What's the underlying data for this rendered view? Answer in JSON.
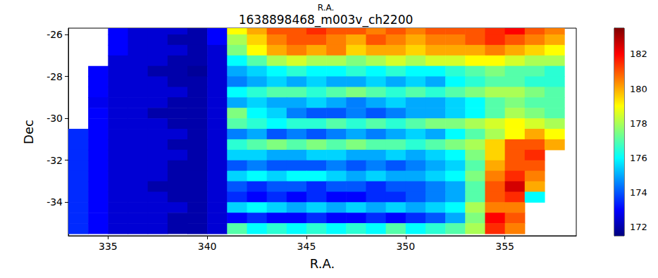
{
  "chart_data": {
    "type": "heatmap",
    "subtitle": "R.A.",
    "title": "1638898468_m003v_ch2200",
    "xlabel": "R.A.",
    "ylabel": "Dec",
    "x": [
      333.5,
      334.5,
      335.5,
      336.5,
      337.5,
      338.5,
      339.5,
      340.5,
      341.5,
      342.5,
      343.5,
      344.5,
      345.5,
      346.5,
      347.5,
      348.5,
      349.5,
      350.5,
      351.5,
      352.5,
      353.5,
      354.5,
      355.5,
      356.5,
      357.5
    ],
    "y": [
      -25.75,
      -26.25,
      -26.75,
      -27.25,
      -27.75,
      -28.25,
      -28.75,
      -29.25,
      -29.75,
      -30.25,
      -30.75,
      -31.25,
      -31.75,
      -32.25,
      -32.75,
      -33.25,
      -33.75,
      -34.25,
      -34.75,
      -35.25
    ],
    "cells": [
      [
        null,
        null,
        173,
        172.5,
        172.5,
        172.5,
        172,
        173,
        179,
        180,
        181,
        181,
        181.5,
        181,
        181,
        180.5,
        181,
        180.5,
        181,
        181,
        181,
        181.5,
        182,
        181,
        180.5
      ],
      [
        null,
        null,
        173,
        172.5,
        172.5,
        172,
        172,
        173,
        178,
        179.5,
        180.5,
        181,
        181,
        180.5,
        180,
        181,
        180.5,
        180,
        180.5,
        180.5,
        181,
        181.5,
        181,
        180.5,
        180
      ],
      [
        null,
        null,
        173,
        172.5,
        172.5,
        172.5,
        172,
        172.5,
        177.5,
        179,
        180,
        180.5,
        180,
        180.5,
        179.5,
        180,
        180,
        179.5,
        180,
        180,
        180,
        180.5,
        180,
        179.5,
        179
      ],
      [
        null,
        null,
        172.5,
        172.5,
        172.5,
        172,
        172,
        172.5,
        176,
        177,
        178,
        178.5,
        178,
        178,
        177.5,
        178,
        178.5,
        178,
        178.5,
        178.5,
        179,
        179,
        178.5,
        178,
        178
      ],
      [
        null,
        173,
        172.5,
        172.5,
        172,
        172,
        171.8,
        172.5,
        175,
        175.5,
        176,
        176.5,
        176,
        176,
        176.5,
        176,
        176.5,
        176,
        176,
        176.5,
        177,
        177.5,
        177,
        177,
        176.5
      ],
      [
        null,
        173,
        172.5,
        172.5,
        172.5,
        172,
        172,
        172.5,
        174.5,
        175,
        175.5,
        175,
        175.5,
        175,
        175,
        175.5,
        175,
        175.5,
        175,
        176,
        176.5,
        177,
        177,
        176.5,
        176.5
      ],
      [
        null,
        173,
        172.5,
        172.5,
        172.5,
        172.5,
        172,
        172.5,
        176,
        176.5,
        177,
        177,
        176.5,
        177,
        177.5,
        177,
        176.5,
        177,
        176.5,
        177,
        177.5,
        178,
        178,
        177.5,
        177
      ],
      [
        null,
        172.8,
        172.5,
        172.5,
        172.5,
        172,
        172,
        172.5,
        175,
        175.5,
        175,
        175,
        175.5,
        175,
        174.5,
        175,
        175.5,
        175,
        175,
        175.5,
        176,
        177,
        177.5,
        177,
        177
      ],
      [
        null,
        173,
        172.5,
        172.5,
        172,
        172,
        172,
        172.5,
        177.5,
        176,
        175.5,
        174.5,
        174,
        174,
        174.5,
        174,
        174.5,
        175,
        175,
        175.5,
        176,
        177,
        178,
        177.5,
        177
      ],
      [
        null,
        173,
        172.5,
        172.5,
        172.5,
        172,
        172,
        172.5,
        177,
        176.5,
        176,
        176.5,
        176.5,
        177,
        176.5,
        177,
        176.5,
        177,
        177.5,
        177.5,
        178,
        178.5,
        179,
        178.5,
        178
      ],
      [
        173.5,
        173,
        172.5,
        172.5,
        172.5,
        172.5,
        172,
        172.5,
        174.5,
        175,
        174,
        174.5,
        174,
        174.5,
        175,
        174.5,
        175,
        175.5,
        175,
        176,
        177,
        178,
        179,
        180,
        179
      ],
      [
        173.5,
        173,
        172.5,
        172.5,
        172.5,
        172,
        172,
        172.5,
        176.5,
        177,
        177.5,
        177,
        177.5,
        177,
        177.5,
        177,
        177,
        176.5,
        177,
        177.5,
        178,
        179.5,
        181,
        181,
        180
      ],
      [
        173.5,
        173,
        172.5,
        172.5,
        172.5,
        172.5,
        172,
        172.5,
        175.5,
        175.5,
        175,
        175,
        175.5,
        175.5,
        175,
        175,
        175.5,
        175,
        175.5,
        176,
        177.5,
        179.5,
        181,
        181.5,
        null
      ],
      [
        173.5,
        173,
        172.5,
        172.5,
        172.5,
        172,
        172,
        172.5,
        174,
        174.5,
        174,
        174,
        174,
        174.5,
        174,
        174.5,
        174,
        174.5,
        175,
        175.5,
        177,
        180,
        181,
        181,
        null
      ],
      [
        173.5,
        173,
        172.5,
        172.5,
        172.5,
        172,
        172,
        172.5,
        175.5,
        176,
        175.5,
        176,
        176,
        175.5,
        175,
        175.5,
        175,
        175,
        175.5,
        176,
        177.5,
        180.5,
        181.5,
        180.5,
        null
      ],
      [
        173.5,
        173,
        172.5,
        172.5,
        172,
        172,
        172,
        172.5,
        174,
        173.5,
        174,
        174,
        173.5,
        174,
        174,
        173.5,
        174,
        174,
        174.5,
        175,
        177,
        181,
        182.5,
        180,
        null
      ],
      [
        173.5,
        173,
        172.5,
        172.5,
        172.5,
        172,
        172,
        172.5,
        173.5,
        173,
        173.5,
        173,
        173.5,
        173,
        173,
        173.5,
        173.5,
        174,
        174.5,
        175,
        177,
        181,
        181.5,
        176,
        null
      ],
      [
        173.5,
        173,
        172.5,
        172.5,
        172.5,
        172.5,
        172,
        172.5,
        175.5,
        176,
        175.5,
        175,
        175.5,
        175,
        175.5,
        175,
        175.5,
        175,
        175.5,
        176,
        178,
        180.5,
        180.5,
        null,
        null
      ],
      [
        173.5,
        173,
        172.5,
        172.5,
        172.5,
        172,
        172,
        172.5,
        173,
        173.5,
        173,
        173,
        173.5,
        173,
        173,
        173.5,
        173,
        173.5,
        174,
        175,
        177.5,
        182,
        181,
        null,
        null
      ],
      [
        173.5,
        173,
        172.5,
        172.5,
        172.5,
        172,
        172,
        172.5,
        177,
        176,
        176.5,
        176,
        176.5,
        176,
        176.5,
        176,
        177,
        176,
        176.5,
        177,
        178,
        181.5,
        180.5,
        null,
        null
      ]
    ],
    "xlim": [
      333,
      358.6
    ],
    "ylim": [
      -35.6,
      -25.7
    ],
    "xticks": [
      335,
      340,
      345,
      350,
      355
    ],
    "yticks": [
      -34,
      -32,
      -30,
      -28,
      -26
    ],
    "colorbar": {
      "range": [
        171.5,
        183.5
      ],
      "ticks": [
        172,
        174,
        176,
        178,
        180,
        182
      ]
    }
  }
}
